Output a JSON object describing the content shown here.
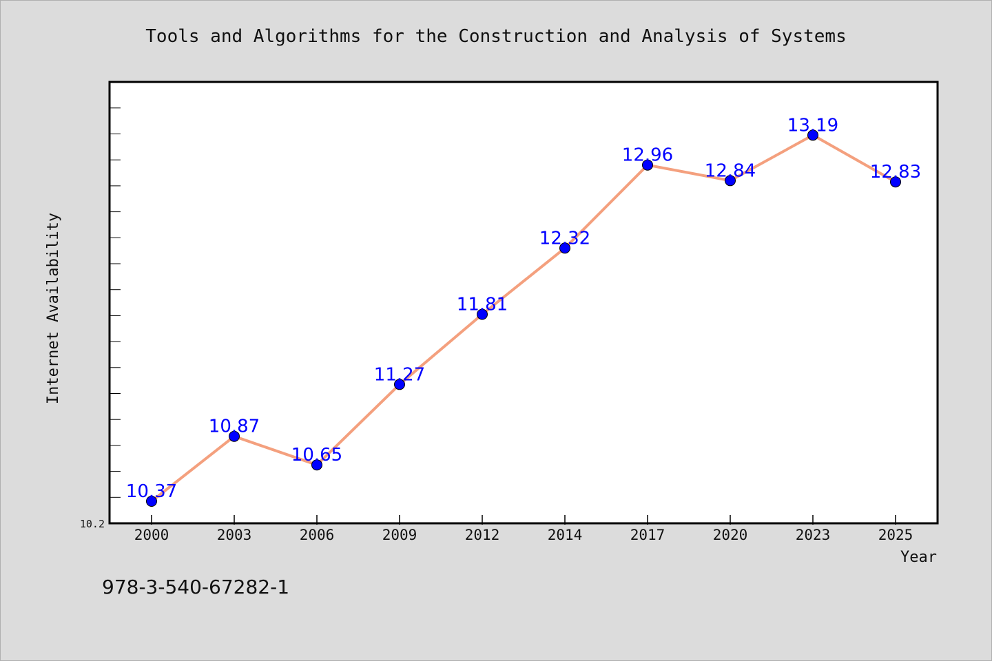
{
  "chart_data": {
    "type": "line",
    "title": "Tools and Algorithms for the Construction and Analysis of Systems",
    "xlabel": "Year",
    "ylabel": "Internet Availability",
    "categories": [
      "2000",
      "2003",
      "2006",
      "2009",
      "2012",
      "2014",
      "2017",
      "2020",
      "2023",
      "2025"
    ],
    "series": [
      {
        "values": [
          10.37,
          10.87,
          10.65,
          11.27,
          11.81,
          12.32,
          12.96,
          12.84,
          13.19,
          12.83
        ]
      }
    ],
    "data_labels": [
      "10.37",
      "10.87",
      "10.65",
      "11.27",
      "11.81",
      "12.32",
      "12.96",
      "12.84",
      "13.19",
      "12.83"
    ],
    "ylim": [
      10.2,
      13.6
    ],
    "ytick_labels": [
      "10.2"
    ],
    "grid": false,
    "line_color": "#f4a07e",
    "marker_color": "#0000ff",
    "label_color": "#0000ff"
  },
  "footer": {
    "isbn": "978-3-540-67282-1"
  }
}
